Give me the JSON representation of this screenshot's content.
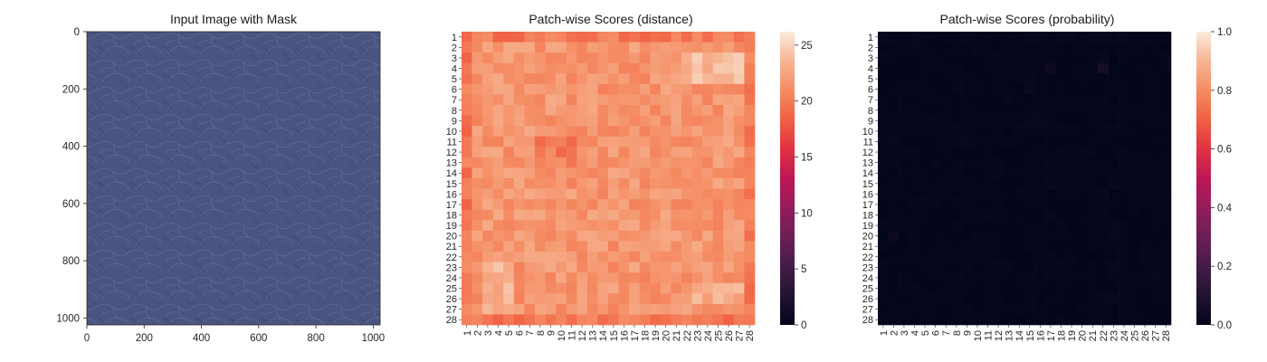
{
  "chart_data": [
    {
      "type": "image",
      "title": "Input Image with Mask",
      "xlim": [
        0,
        1024
      ],
      "ylim": [
        1024,
        0
      ],
      "xticks": [
        "0",
        "200",
        "400",
        "600",
        "800",
        "1000"
      ],
      "yticks": [
        "0",
        "200",
        "400",
        "600",
        "800",
        "1000"
      ],
      "image_color": "#4a5480"
    },
    {
      "type": "heatmap",
      "title": "Patch-wise Scores (distance)",
      "rows": [
        "1",
        "2",
        "3",
        "4",
        "5",
        "6",
        "7",
        "8",
        "9",
        "10",
        "11",
        "12",
        "13",
        "14",
        "15",
        "16",
        "17",
        "18",
        "19",
        "20",
        "21",
        "22",
        "23",
        "24",
        "25",
        "26",
        "27",
        "28"
      ],
      "cols": [
        "1",
        "2",
        "3",
        "4",
        "5",
        "6",
        "7",
        "8",
        "9",
        "10",
        "11",
        "12",
        "13",
        "14",
        "15",
        "16",
        "17",
        "18",
        "19",
        "20",
        "21",
        "22",
        "23",
        "24",
        "25",
        "26",
        "27",
        "28"
      ],
      "vmin": 0,
      "vmax": 26.2,
      "colorbar_ticks": [
        "0",
        "5",
        "10",
        "15",
        "20",
        "25"
      ],
      "colormap": "rocket",
      "approx_value_range": [
        17.5,
        25.5
      ]
    },
    {
      "type": "heatmap",
      "title": "Patch-wise Scores (probability)",
      "rows": [
        "1",
        "2",
        "3",
        "4",
        "5",
        "6",
        "7",
        "8",
        "9",
        "10",
        "11",
        "12",
        "13",
        "14",
        "15",
        "16",
        "17",
        "18",
        "19",
        "20",
        "21",
        "22",
        "23",
        "24",
        "25",
        "26",
        "27",
        "28"
      ],
      "cols": [
        "1",
        "2",
        "3",
        "4",
        "5",
        "6",
        "7",
        "8",
        "9",
        "10",
        "11",
        "12",
        "13",
        "14",
        "15",
        "16",
        "17",
        "18",
        "19",
        "20",
        "21",
        "22",
        "23",
        "24",
        "25",
        "26",
        "27",
        "28"
      ],
      "vmin": 0,
      "vmax": 1,
      "colorbar_ticks": [
        "0.0",
        "0.2",
        "0.4",
        "0.6",
        "0.8",
        "1.0"
      ],
      "colormap": "rocket",
      "approx_value_range": [
        0.0,
        0.05
      ]
    }
  ]
}
